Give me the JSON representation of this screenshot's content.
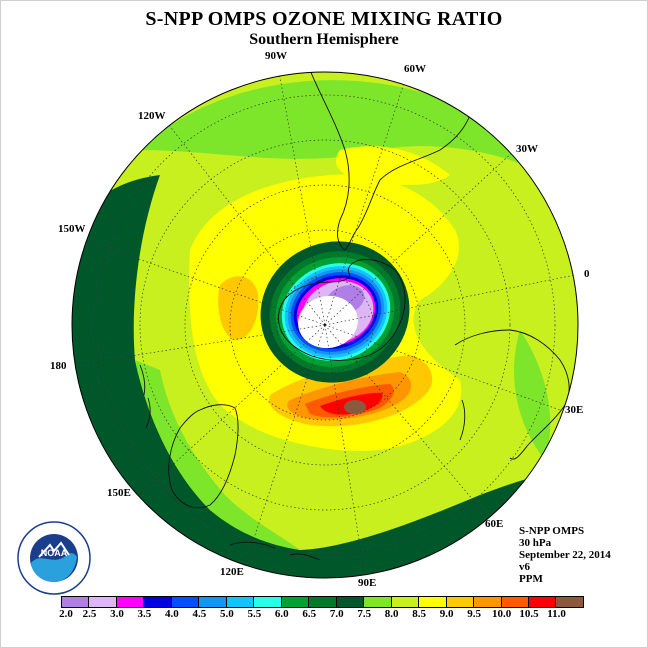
{
  "title": "S-NPP OMPS OZONE MIXING RATIO",
  "subtitle": "Southern Hemisphere",
  "logo_text": "NOAA",
  "logo_ring_text": "NATIONAL OCEANIC AND ATMOSPHERIC ADMINISTRATION · U.S. DEPARTMENT OF COMMERCE",
  "info": {
    "instrument": "S-NPP OMPS",
    "level": "30 hPa",
    "date": "September 22, 2014",
    "version": "v6",
    "units": "PPM"
  },
  "longitude_labels": [
    "90W",
    "60W",
    "30W",
    "0",
    "30E",
    "60E",
    "90E",
    "120E",
    "150E",
    "180",
    "150W",
    "120W"
  ],
  "colorbar": {
    "ticks": [
      "2.0",
      "2.5",
      "3.0",
      "3.5",
      "4.0",
      "4.5",
      "5.0",
      "5.5",
      "6.0",
      "6.5",
      "7.0",
      "7.5",
      "8.0",
      "8.5",
      "9.0",
      "9.5",
      "10.0",
      "10.5",
      "11.0"
    ],
    "colors": [
      "#b07fe6",
      "#dcb6f5",
      "#ff00ff",
      "#0000e0",
      "#0050ff",
      "#1496f0",
      "#14c3ff",
      "#28ffe6",
      "#00a032",
      "#007a2a",
      "#00582a",
      "#7ee62a",
      "#c8f01e",
      "#ffff00",
      "#ffc800",
      "#ff9600",
      "#ff5a00",
      "#ff0000",
      "#8b5a3c"
    ]
  },
  "map_colors": {
    "background": "#ffffff",
    "base": "#c8f01e",
    "light_green": "#7ee62a",
    "dark_green": "#00582a",
    "yellow": "#ffff00",
    "gold": "#ffc800",
    "orange": "#ff9600",
    "red_orange": "#ff5a00",
    "red": "#ff0000",
    "brown": "#8b5a3c"
  }
}
